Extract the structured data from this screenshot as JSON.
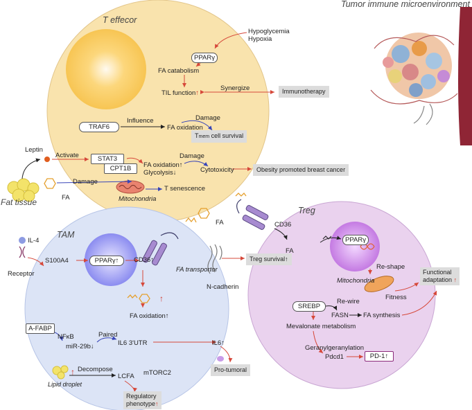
{
  "colors": {
    "red_arrow": "#d6483a",
    "blue_arrow": "#3845b8",
    "t_cell": "#f9e3ad",
    "tam": "#dce4f6",
    "treg": "#ead2ee"
  },
  "header": {
    "title": "Tumor immune microenvironment"
  },
  "t_effector": {
    "title": "T effecor",
    "hypoglycemia": "Hypoglycemia",
    "hypoxia": "Hypoxia",
    "ppar": "PPARγ",
    "fa_catabolism": "FA catabolism",
    "til_function": "TIL function",
    "up": "↑",
    "synergize": "Synergize",
    "immunotherapy": "Immunotherapy",
    "traf6": "TRAF6",
    "influence": "Influence",
    "fa_oxidation": "FA oxidation",
    "damage": "Damage",
    "t_mem": "T",
    "mem_sub": "mem",
    "cell_survival": " cell survival",
    "stat3": "STAT3",
    "cpt1b": "CPT1B",
    "activate": "Activate",
    "fa_ox2": "FA oxidation↑",
    "glycolysis": "Glycolysis↓",
    "damage2": "Damage",
    "cytotoxicity": "Cytotoxicity",
    "obesity": "Obesity promoted breast cancer",
    "mitochondria": "Mitochondria",
    "t_senescence": "T senescence"
  },
  "fat": {
    "leptin": "Leptin",
    "fat_tissue": "Fat tissue",
    "fa": "FA",
    "damage": "Damage"
  },
  "middle": {
    "fa": "FA",
    "fa_transporter": "FA transportor",
    "n_cadherin": "N-cadherin",
    "treg_survival": "Treg survival↑"
  },
  "tam": {
    "title": "TAM",
    "il4": "IL-4",
    "receptor": "Receptor",
    "s100a4": "S100A4",
    "ppar": "PPARγ↑",
    "cd36": "CD36↑",
    "fa_oxidation": "FA oxidation↑",
    "a_fabp": "A-FABP",
    "nfkb": "NFκB",
    "mir29b": "miR-29b↓",
    "paired": "Paired",
    "il6_utr": "IL6 3'UTR",
    "il6": "IL6↑",
    "pro_tumoral": "Pro-tumoral",
    "lipid_droplet": "Lipid droplet",
    "decompose": "Decompose",
    "lcfa": "LCFA",
    "mtorc2": "mTORC2",
    "regulatory": "Regulatory",
    "phenotype": "phenotype",
    "up": "↑"
  },
  "treg": {
    "title": "Treg",
    "cd36": "CD36",
    "fa": "FA",
    "ppar": "PPARγ",
    "reshape": "Re-shape",
    "mitochondria": "Mitochondria",
    "fitness": "Fitness",
    "functional": "Functional",
    "adaptation": "adaptation",
    "up": "↑",
    "srebp": "SREBP",
    "rewire": "Re-wire",
    "fasn": "FASN",
    "fa_synthesis": "FA synthesis",
    "mevalonate": "Mevalonate metabolism",
    "geranyl": "Geranylgeranylation",
    "pdcd1": "Pdcd1",
    "pd1": "PD-1↑"
  }
}
